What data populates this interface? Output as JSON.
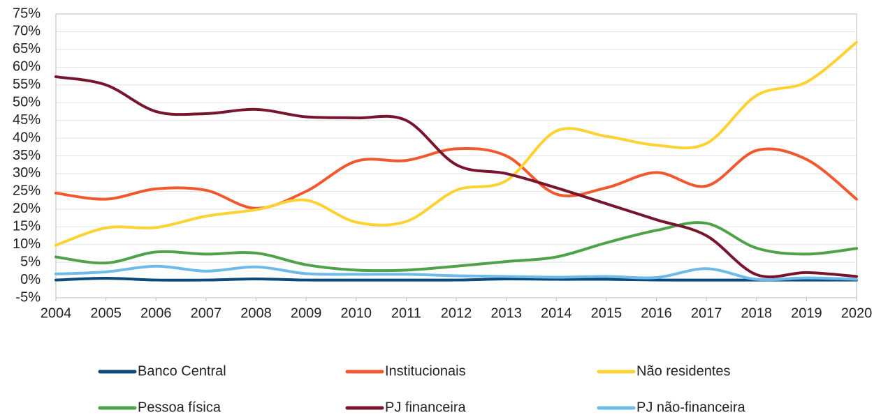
{
  "chart_data": {
    "type": "line",
    "x": [
      2004,
      2005,
      2006,
      2007,
      2008,
      2009,
      2010,
      2011,
      2012,
      2013,
      2014,
      2015,
      2016,
      2017,
      2018,
      2019,
      2020
    ],
    "xlim": [
      2004,
      2020
    ],
    "xticks": [
      2004,
      2005,
      2006,
      2007,
      2008,
      2009,
      2010,
      2011,
      2012,
      2013,
      2014,
      2015,
      2016,
      2017,
      2018,
      2019,
      2020
    ],
    "ylim": [
      -5,
      75
    ],
    "yticks": [
      {
        "value": -5,
        "label": "-5%"
      },
      {
        "value": 0,
        "label": "0%"
      },
      {
        "value": 5,
        "label": "5%"
      },
      {
        "value": 10,
        "label": "10%"
      },
      {
        "value": 15,
        "label": "15%"
      },
      {
        "value": 20,
        "label": "20%"
      },
      {
        "value": 25,
        "label": "25%"
      },
      {
        "value": 30,
        "label": "30%"
      },
      {
        "value": 35,
        "label": "35%"
      },
      {
        "value": 40,
        "label": "40%"
      },
      {
        "value": 45,
        "label": "45%"
      },
      {
        "value": 50,
        "label": "50%"
      },
      {
        "value": 55,
        "label": "55%"
      },
      {
        "value": 60,
        "label": "60%"
      },
      {
        "value": 65,
        "label": "65%"
      },
      {
        "value": 70,
        "label": "70%"
      },
      {
        "value": 75,
        "label": "75%"
      }
    ],
    "grid": true,
    "smooth": true,
    "legend": "bottom",
    "series": [
      {
        "name": "Banco Central",
        "color": "#0b4a7a",
        "values": [
          0,
          0.5,
          0,
          0,
          0.3,
          0,
          0,
          0,
          0,
          0.3,
          0.2,
          0.2,
          0,
          0,
          0,
          0,
          0
        ]
      },
      {
        "name": "Institucionais",
        "color": "#f0582e",
        "values": [
          24.5,
          22.8,
          25.7,
          25.3,
          20.2,
          25.0,
          33.5,
          33.7,
          37.0,
          35.0,
          24.2,
          26.0,
          30.3,
          26.5,
          36.5,
          34.0,
          22.8
        ]
      },
      {
        "name": "Não residentes",
        "color": "#ffd233",
        "values": [
          9.8,
          14.7,
          14.8,
          18.0,
          19.8,
          22.5,
          16.3,
          16.5,
          25.3,
          28.0,
          42.0,
          40.5,
          38.0,
          38.5,
          52.0,
          55.8,
          67.0
        ]
      },
      {
        "name": "Pessoa física",
        "color": "#4ea24a",
        "values": [
          6.5,
          4.8,
          7.9,
          7.3,
          7.6,
          4.3,
          2.8,
          2.8,
          3.9,
          5.2,
          6.5,
          10.5,
          14.0,
          16.0,
          9.0,
          7.3,
          8.9
        ]
      },
      {
        "name": "PJ financeira",
        "color": "#78152e",
        "values": [
          57.3,
          55.0,
          47.5,
          46.9,
          48.1,
          46.0,
          45.7,
          45.0,
          32.5,
          30.0,
          26.0,
          21.5,
          17.0,
          12.5,
          1.5,
          2.1,
          1.0
        ]
      },
      {
        "name": "PJ não-financeira",
        "color": "#6ebbe9",
        "values": [
          1.7,
          2.3,
          3.9,
          2.5,
          3.7,
          1.8,
          1.6,
          1.6,
          1.2,
          1.0,
          0.8,
          1.0,
          0.7,
          3.2,
          0.2,
          0.6,
          0.2
        ]
      }
    ]
  }
}
